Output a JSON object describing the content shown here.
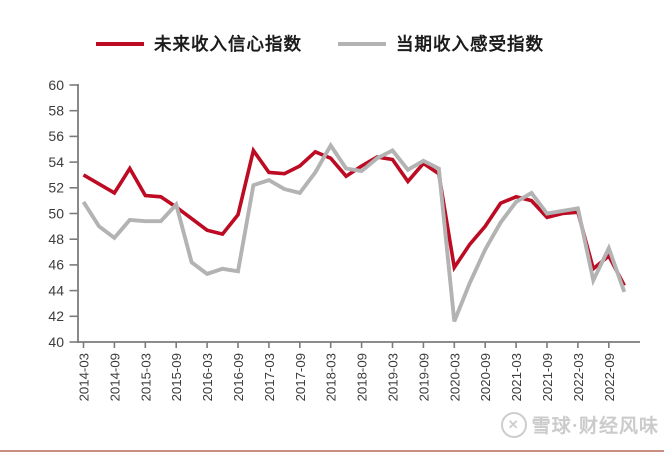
{
  "legend": [
    {
      "label": "未来收入信心指数",
      "color": "#bc0b23"
    },
    {
      "label": "当期收入感受指数",
      "color": "#b3b3b3"
    }
  ],
  "chart_data": {
    "type": "line",
    "x": [
      "2014-03",
      "2014-06",
      "2014-09",
      "2014-12",
      "2015-03",
      "2015-06",
      "2015-09",
      "2015-12",
      "2016-03",
      "2016-06",
      "2016-09",
      "2016-12",
      "2017-03",
      "2017-06",
      "2017-09",
      "2017-12",
      "2018-03",
      "2018-06",
      "2018-09",
      "2018-12",
      "2019-03",
      "2019-06",
      "2019-09",
      "2019-12",
      "2020-03",
      "2020-06",
      "2020-09",
      "2020-12",
      "2021-03",
      "2021-06",
      "2021-09",
      "2021-12",
      "2022-03",
      "2022-06",
      "2022-09",
      "2022-12"
    ],
    "series": [
      {
        "name": "未来收入信心指数",
        "color": "#bc0b23",
        "values": [
          53.0,
          52.3,
          51.6,
          53.5,
          51.4,
          51.3,
          50.5,
          49.6,
          48.7,
          48.4,
          49.9,
          54.9,
          53.2,
          53.1,
          53.7,
          54.8,
          54.3,
          52.9,
          53.7,
          54.4,
          54.2,
          52.5,
          53.9,
          53.1,
          45.8,
          47.6,
          49.0,
          50.8,
          51.3,
          51.0,
          49.7,
          50.0,
          50.1,
          45.7,
          46.7,
          44.4
        ]
      },
      {
        "name": "当期收入感受指数",
        "color": "#b3b3b3",
        "values": [
          50.9,
          49.0,
          48.1,
          49.5,
          49.4,
          49.4,
          50.7,
          46.2,
          45.3,
          45.7,
          45.5,
          52.2,
          52.6,
          51.9,
          51.6,
          53.2,
          55.3,
          53.5,
          53.3,
          54.3,
          54.9,
          53.4,
          54.1,
          53.5,
          41.6,
          44.6,
          47.2,
          49.3,
          50.9,
          51.6,
          50.0,
          50.2,
          50.4,
          44.8,
          47.3,
          43.9
        ]
      }
    ],
    "xtick_labels": [
      "2014-03",
      "2014-09",
      "2015-03",
      "2015-09",
      "2016-03",
      "2016-09",
      "2017-03",
      "2017-09",
      "2018-03",
      "2018-09",
      "2019-03",
      "2019-09",
      "2020-03",
      "2020-09",
      "2021-03",
      "2021-09",
      "2022-03",
      "2022-09"
    ],
    "ytick_labels": [
      "40",
      "42",
      "44",
      "46",
      "48",
      "50",
      "52",
      "54",
      "56",
      "58",
      "60"
    ],
    "ylim": [
      40,
      60
    ],
    "ytick_step": 2,
    "grid": false,
    "legend_position": "top",
    "title": "",
    "xlabel": "",
    "ylabel": ""
  },
  "watermark": {
    "text": "雪球·财经风味"
  }
}
